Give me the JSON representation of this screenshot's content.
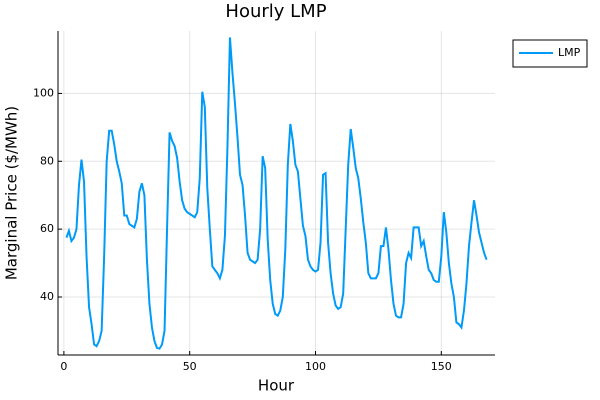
{
  "chart_data": {
    "type": "line",
    "title": "Hourly LMP",
    "x_label": "Hour",
    "y_label": "Marginal Price ($/MWh)",
    "x": [
      1,
      2,
      3,
      4,
      5,
      6,
      7,
      8,
      9,
      10,
      11,
      12,
      13,
      14,
      15,
      16,
      17,
      18,
      19,
      20,
      21,
      22,
      23,
      24,
      25,
      26,
      27,
      28,
      29,
      30,
      31,
      32,
      33,
      34,
      35,
      36,
      37,
      38,
      39,
      40,
      41,
      42,
      43,
      44,
      45,
      46,
      47,
      48,
      49,
      50,
      51,
      52,
      53,
      54,
      55,
      56,
      57,
      58,
      59,
      60,
      61,
      62,
      63,
      64,
      65,
      66,
      67,
      68,
      69,
      70,
      71,
      72,
      73,
      74,
      75,
      76,
      77,
      78,
      79,
      80,
      81,
      82,
      83,
      84,
      85,
      86,
      87,
      88,
      89,
      90,
      91,
      92,
      93,
      94,
      95,
      96,
      97,
      98,
      99,
      100,
      101,
      102,
      103,
      104,
      105,
      106,
      107,
      108,
      109,
      110,
      111,
      112,
      113,
      114,
      115,
      116,
      117,
      118,
      119,
      120,
      121,
      122,
      123,
      124,
      125,
      126,
      127,
      128,
      129,
      130,
      131,
      132,
      133,
      134,
      135,
      136,
      137,
      138,
      139,
      140,
      141,
      142,
      143,
      144,
      145,
      146,
      147,
      148,
      149,
      150,
      151,
      152,
      153,
      154,
      155,
      156,
      157,
      158,
      159,
      160,
      161,
      162,
      163,
      164,
      165,
      166,
      167,
      168
    ],
    "series": [
      {
        "name": "LMP",
        "color": "#009af9",
        "values": [
          57.5,
          59.5,
          56.5,
          57.5,
          60,
          73,
          80.5,
          74,
          52,
          37,
          32,
          26,
          25.5,
          27,
          30,
          52,
          80,
          89,
          89,
          85,
          80,
          77,
          73.5,
          64,
          64,
          61.5,
          61,
          60.5,
          63,
          71,
          73.5,
          70,
          51,
          38,
          31,
          27,
          25,
          24.8,
          26,
          30,
          60,
          88.5,
          86,
          84.5,
          81,
          74,
          68.5,
          66,
          65,
          64.5,
          64,
          63.5,
          65,
          75,
          100.5,
          96,
          72,
          60,
          49,
          48,
          47,
          45.5,
          48,
          58,
          84,
          116.5,
          106,
          97,
          87,
          76,
          73,
          64,
          53,
          51,
          50.5,
          50,
          51,
          60,
          81.5,
          78,
          57,
          45,
          38,
          35,
          34.5,
          36,
          40,
          54,
          79,
          91,
          86,
          79,
          77,
          69,
          61,
          58,
          51,
          49,
          48,
          47.5,
          48,
          56,
          76,
          76.5,
          56,
          47,
          41,
          37.5,
          36.5,
          37,
          41,
          60,
          79,
          89.5,
          84,
          78,
          75,
          69,
          62,
          56,
          47,
          45.5,
          45.5,
          45.5,
          47,
          55,
          55,
          60.5,
          54,
          45,
          38,
          34.5,
          34,
          34,
          38,
          50,
          53,
          51.5,
          60.5,
          60.5,
          60.5,
          55,
          56.5,
          52,
          48,
          47,
          45,
          44.5,
          44.5,
          52,
          65,
          59,
          50,
          44,
          40,
          32.5,
          32,
          31,
          36,
          44,
          55,
          62,
          68.5,
          64,
          59,
          56,
          53,
          51
        ]
      }
    ],
    "xlim": [
      -2.34,
      171.34
    ],
    "ylim": [
      22.9,
      118.4
    ],
    "xticks": [
      0,
      50,
      100,
      150
    ],
    "yticks": [
      40,
      60,
      80,
      100
    ],
    "grid": true,
    "legend": "outside-top-right"
  }
}
